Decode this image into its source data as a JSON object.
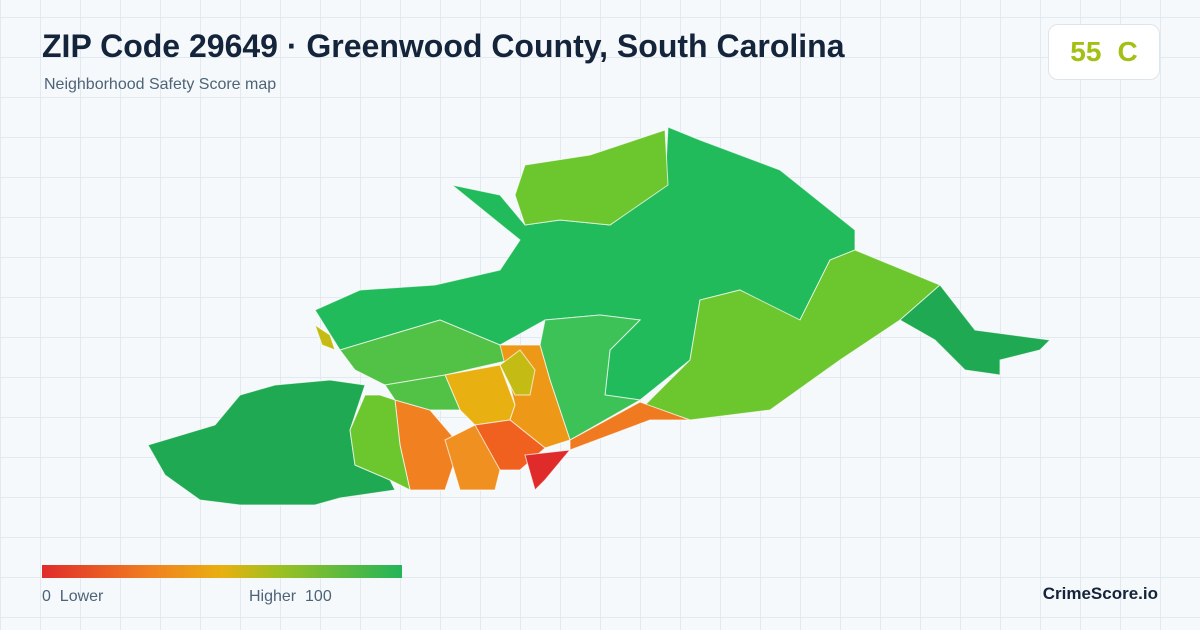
{
  "header": {
    "title": "ZIP Code 29649 · Greenwood County, South Carolina",
    "subtitle": "Neighborhood Safety Score map"
  },
  "score": {
    "value": 55,
    "grade": "C"
  },
  "legend": {
    "min": 0,
    "min_label": "Lower",
    "max_label": "Higher",
    "max": 100
  },
  "brand": "CrimeScore.io"
}
